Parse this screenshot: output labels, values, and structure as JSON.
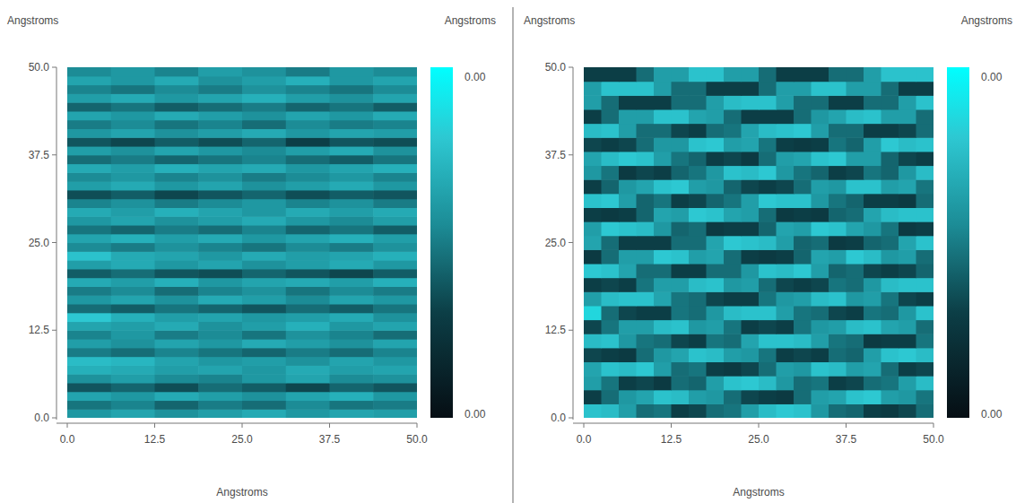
{
  "chart_data": [
    {
      "type": "heatmap",
      "x_label": "Angstroms",
      "y_label": "Angstroms",
      "colorbar_label": "Angstroms",
      "xlim": [
        0,
        50
      ],
      "ylim": [
        0,
        50
      ],
      "xticks": [
        {
          "value": 0,
          "label": "0.0"
        },
        12.5,
        {
          "value": 25,
          "label": "25.0"
        },
        37.5,
        {
          "value": 50,
          "label": "50.0"
        }
      ],
      "yticks": [
        {
          "value": 0,
          "label": "0.0"
        },
        12.5,
        {
          "value": 25,
          "label": "25.0"
        },
        37.5,
        {
          "value": 50,
          "label": "50.0"
        }
      ],
      "colorbar_range": [
        0,
        0.004
      ],
      "colorbar_ticks": [
        {
          "value": 0,
          "label": "0.00"
        },
        {
          "value": 0.004,
          "label": "0.00"
        }
      ],
      "z": [
        [
          0.0024,
          0.0026,
          0.0023,
          0.0025,
          0.0027,
          0.0024,
          0.0026,
          0.0025
        ],
        [
          0.0019,
          0.0021,
          0.0017,
          0.002,
          0.0018,
          0.0022,
          0.0019,
          0.002
        ],
        [
          0.0026,
          0.0024,
          0.0027,
          0.0025,
          0.0023,
          0.0026,
          0.0028,
          0.0024
        ],
        [
          0.0015,
          0.0017,
          0.0014,
          0.0018,
          0.0016,
          0.0013,
          0.0017,
          0.0015
        ],
        [
          0.0023,
          0.0025,
          0.0022,
          0.0021,
          0.0024,
          0.0026,
          0.0022,
          0.0023
        ],
        [
          0.0028,
          0.0027,
          0.0025,
          0.0026,
          0.0024,
          0.0027,
          0.0025,
          0.0026
        ],
        [
          0.003,
          0.0029,
          0.0026,
          0.0024,
          0.0025,
          0.0023,
          0.0026,
          0.0024
        ],
        [
          0.002,
          0.0018,
          0.0021,
          0.0019,
          0.0017,
          0.002,
          0.0018,
          0.0021
        ],
        [
          0.0025,
          0.0023,
          0.0026,
          0.0024,
          0.0027,
          0.0025,
          0.0023,
          0.0026
        ],
        [
          0.0021,
          0.0024,
          0.002,
          0.0022,
          0.0019,
          0.0023,
          0.0021,
          0.0018
        ],
        [
          0.0026,
          0.0025,
          0.0027,
          0.0023,
          0.0025,
          0.0028,
          0.0024,
          0.0026
        ],
        [
          0.0032,
          0.0028,
          0.0025,
          0.0026,
          0.0024,
          0.0025,
          0.0027,
          0.0023
        ],
        [
          0.0018,
          0.0016,
          0.0019,
          0.0017,
          0.0015,
          0.0018,
          0.0016,
          0.0019
        ],
        [
          0.0024,
          0.0026,
          0.0023,
          0.0027,
          0.0025,
          0.0022,
          0.0026,
          0.0024
        ],
        [
          0.002,
          0.0022,
          0.0018,
          0.0021,
          0.0023,
          0.0019,
          0.0022,
          0.002
        ],
        [
          0.0027,
          0.0025,
          0.0028,
          0.0024,
          0.0026,
          0.0027,
          0.0025,
          0.0028
        ],
        [
          0.0016,
          0.0018,
          0.0015,
          0.0014,
          0.0017,
          0.0015,
          0.0013,
          0.0016
        ],
        [
          0.0025,
          0.0027,
          0.0024,
          0.0026,
          0.0023,
          0.0025,
          0.0027,
          0.0024
        ],
        [
          0.0031,
          0.0027,
          0.0026,
          0.0024,
          0.0027,
          0.0025,
          0.0026,
          0.0028
        ],
        [
          0.0022,
          0.002,
          0.0023,
          0.0021,
          0.0019,
          0.0022,
          0.002,
          0.0023
        ],
        [
          0.0026,
          0.0028,
          0.0025,
          0.0027,
          0.0024,
          0.0026,
          0.0028,
          0.0025
        ],
        [
          0.0019,
          0.0017,
          0.002,
          0.0018,
          0.0021,
          0.0017,
          0.0019,
          0.0016
        ],
        [
          0.0024,
          0.0026,
          0.0023,
          0.0025,
          0.0027,
          0.0024,
          0.0022,
          0.0025
        ],
        [
          0.0027,
          0.0025,
          0.0028,
          0.0026,
          0.0024,
          0.0027,
          0.0025,
          0.0027
        ],
        [
          0.0021,
          0.0023,
          0.002,
          0.0022,
          0.0024,
          0.0021,
          0.0023,
          0.002
        ],
        [
          0.0014,
          0.0016,
          0.0013,
          0.0015,
          0.0017,
          0.0014,
          0.0016,
          0.0015
        ],
        [
          0.0025,
          0.0027,
          0.0024,
          0.0026,
          0.0023,
          0.0025,
          0.0027,
          0.0024
        ],
        [
          0.0022,
          0.0024,
          0.0021,
          0.0023,
          0.002,
          0.0022,
          0.0024,
          0.0021
        ],
        [
          0.0027,
          0.0025,
          0.0028,
          0.0026,
          0.0027,
          0.0024,
          0.0026,
          0.0028
        ],
        [
          0.0018,
          0.002,
          0.0017,
          0.0019,
          0.0021,
          0.0018,
          0.0016,
          0.0019
        ],
        [
          0.0025,
          0.0023,
          0.0026,
          0.0024,
          0.0022,
          0.0025,
          0.0027,
          0.0023
        ],
        [
          0.0015,
          0.0013,
          0.0016,
          0.0014,
          0.0017,
          0.0012,
          0.0015,
          0.0014
        ],
        [
          0.0024,
          0.0026,
          0.0023,
          0.0025,
          0.0027,
          0.0024,
          0.0026,
          0.0025
        ],
        [
          0.002,
          0.0022,
          0.0019,
          0.0021,
          0.0018,
          0.0022,
          0.002,
          0.0021
        ],
        [
          0.0026,
          0.0024,
          0.0027,
          0.0025,
          0.0023,
          0.0026,
          0.0024,
          0.0027
        ],
        [
          0.0017,
          0.0019,
          0.0016,
          0.0018,
          0.002,
          0.0017,
          0.0019,
          0.0016
        ],
        [
          0.0025,
          0.0027,
          0.0024,
          0.0026,
          0.0028,
          0.0025,
          0.0023,
          0.0026
        ],
        [
          0.0021,
          0.0019,
          0.0022,
          0.002,
          0.0023,
          0.0021,
          0.0019,
          0.0022
        ],
        [
          0.0026,
          0.0024,
          0.0027,
          0.0023,
          0.0025,
          0.0028,
          0.0024,
          0.0026
        ],
        [
          0.0022,
          0.0024,
          0.0021,
          0.0025,
          0.0023,
          0.002,
          0.0024,
          0.0022
        ]
      ]
    },
    {
      "type": "heatmap",
      "x_label": "Angstroms",
      "y_label": "Angstroms",
      "colorbar_label": "Angstroms",
      "xlim": [
        0,
        50
      ],
      "ylim": [
        0,
        50
      ],
      "xticks": [
        {
          "value": 0,
          "label": "0.0"
        },
        12.5,
        {
          "value": 25,
          "label": "25.0"
        },
        37.5,
        {
          "value": 50,
          "label": "50.0"
        }
      ],
      "yticks": [
        {
          "value": 0,
          "label": "0.0"
        },
        12.5,
        {
          "value": 25,
          "label": "25.0"
        },
        37.5,
        {
          "value": 50,
          "label": "50.0"
        }
      ],
      "colorbar_range": [
        0,
        0.004
      ],
      "colorbar_ticks": [
        {
          "value": 0,
          "label": "0.00"
        },
        {
          "value": 0.004,
          "label": "0.00"
        }
      ],
      "z": [
        [
          0.0031,
          0.003,
          0.0025,
          0.0018,
          0.0019,
          0.0012,
          0.0013,
          0.0018,
          0.0019,
          0.0025,
          0.003,
          0.0032,
          0.0031,
          0.0024,
          0.0018,
          0.0017,
          0.0012,
          0.0011,
          0.0013,
          0.0018
        ],
        [
          0.0012,
          0.0018,
          0.0024,
          0.0026,
          0.0031,
          0.003,
          0.0025,
          0.0024,
          0.0018,
          0.0013,
          0.0012,
          0.0011,
          0.0018,
          0.0025,
          0.0026,
          0.0031,
          0.0032,
          0.0025,
          0.0024,
          0.0019
        ],
        [
          0.0025,
          0.0019,
          0.0012,
          0.0013,
          0.0011,
          0.0018,
          0.0017,
          0.0025,
          0.0031,
          0.0032,
          0.003,
          0.0024,
          0.0018,
          0.0019,
          0.0012,
          0.0013,
          0.0018,
          0.0019,
          0.0025,
          0.003
        ],
        [
          0.0026,
          0.0031,
          0.003,
          0.0032,
          0.0025,
          0.0018,
          0.0019,
          0.0012,
          0.0011,
          0.0013,
          0.0018,
          0.0025,
          0.0024,
          0.0031,
          0.003,
          0.0025,
          0.0026,
          0.0018,
          0.0012,
          0.0013
        ],
        [
          0.0013,
          0.0012,
          0.0011,
          0.0018,
          0.0024,
          0.0026,
          0.0031,
          0.003,
          0.0025,
          0.0024,
          0.0019,
          0.0012,
          0.0013,
          0.0012,
          0.0018,
          0.0017,
          0.0025,
          0.0031,
          0.0032,
          0.003
        ],
        [
          0.003,
          0.0031,
          0.0024,
          0.0019,
          0.0018,
          0.0013,
          0.0012,
          0.0019,
          0.0018,
          0.0026,
          0.0031,
          0.0031,
          0.003,
          0.0025,
          0.0019,
          0.0018,
          0.0011,
          0.0012,
          0.0012,
          0.0019
        ],
        [
          0.0013,
          0.0019,
          0.0025,
          0.0025,
          0.003,
          0.0031,
          0.0024,
          0.0025,
          0.0019,
          0.0012,
          0.0013,
          0.0012,
          0.0019,
          0.0024,
          0.0025,
          0.003,
          0.0031,
          0.0026,
          0.0025,
          0.0018
        ],
        [
          0.0034,
          0.0018,
          0.0013,
          0.0012,
          0.0012,
          0.0019,
          0.0018,
          0.0024,
          0.003,
          0.0031,
          0.0031,
          0.0025,
          0.0019,
          0.0018,
          0.0013,
          0.0012,
          0.0019,
          0.0018,
          0.0024,
          0.0031
        ],
        [
          0.0025,
          0.003,
          0.0031,
          0.0031,
          0.0026,
          0.0019,
          0.0018,
          0.0013,
          0.0012,
          0.0012,
          0.0019,
          0.0024,
          0.0025,
          0.003,
          0.0031,
          0.0024,
          0.0025,
          0.0019,
          0.0013,
          0.0012
        ],
        [
          0.0012,
          0.0013,
          0.0012,
          0.0019,
          0.0025,
          0.0025,
          0.003,
          0.0031,
          0.0024,
          0.0025,
          0.0018,
          0.0013,
          0.0012,
          0.0013,
          0.0019,
          0.0018,
          0.0024,
          0.003,
          0.0031,
          0.0031
        ],
        [
          0.0032,
          0.0031,
          0.0026,
          0.0018,
          0.0018,
          0.0012,
          0.0012,
          0.0018,
          0.0018,
          0.0024,
          0.0031,
          0.003,
          0.0032,
          0.0025,
          0.0017,
          0.0018,
          0.0013,
          0.0012,
          0.0013,
          0.0017
        ],
        [
          0.0011,
          0.0018,
          0.0025,
          0.0025,
          0.0032,
          0.0031,
          0.0025,
          0.0026,
          0.0018,
          0.0012,
          0.0011,
          0.0012,
          0.0017,
          0.0026,
          0.0025,
          0.0032,
          0.003,
          0.0024,
          0.0025,
          0.0018
        ],
        [
          0.0026,
          0.0018,
          0.0012,
          0.0012,
          0.0012,
          0.0018,
          0.0018,
          0.0026,
          0.0032,
          0.0031,
          0.003,
          0.0025,
          0.0017,
          0.0018,
          0.0011,
          0.0012,
          0.0017,
          0.0018,
          0.0026,
          0.0031
        ],
        [
          0.0025,
          0.0032,
          0.0031,
          0.003,
          0.0024,
          0.0017,
          0.0018,
          0.0011,
          0.0012,
          0.0012,
          0.0017,
          0.0026,
          0.0025,
          0.0032,
          0.0031,
          0.0026,
          0.0024,
          0.0019,
          0.0011,
          0.0012
        ],
        [
          0.0012,
          0.0011,
          0.0012,
          0.0017,
          0.0026,
          0.0025,
          0.0032,
          0.0031,
          0.0026,
          0.0025,
          0.0018,
          0.0011,
          0.0012,
          0.0011,
          0.0017,
          0.0018,
          0.0026,
          0.003,
          0.0031,
          0.0031
        ],
        [
          0.0031,
          0.0032,
          0.0025,
          0.0017,
          0.0019,
          0.0012,
          0.0013,
          0.0017,
          0.0019,
          0.0025,
          0.0032,
          0.0031,
          0.0031,
          0.0024,
          0.0019,
          0.0017,
          0.0012,
          0.0012,
          0.0011,
          0.0018
        ],
        [
          0.0012,
          0.0017,
          0.0024,
          0.0026,
          0.0031,
          0.0032,
          0.0025,
          0.0024,
          0.0017,
          0.0013,
          0.0012,
          0.0013,
          0.0018,
          0.0025,
          0.0024,
          0.0031,
          0.0031,
          0.0025,
          0.0026,
          0.0019
        ],
        [
          0.0024,
          0.0019,
          0.0011,
          0.0013,
          0.0012,
          0.0017,
          0.0019,
          0.0024,
          0.0031,
          0.003,
          0.0032,
          0.0024,
          0.0019,
          0.0017,
          0.0012,
          0.0013,
          0.0019,
          0.0017,
          0.0024,
          0.003
        ],
        [
          0.0026,
          0.003,
          0.0032,
          0.0031,
          0.0025,
          0.0019,
          0.0017,
          0.0012,
          0.0013,
          0.0011,
          0.0018,
          0.0025,
          0.0026,
          0.0031,
          0.0032,
          0.0025,
          0.0025,
          0.0017,
          0.0013,
          0.0012
        ],
        [
          0.0013,
          0.0012,
          0.0013,
          0.0018,
          0.0024,
          0.0024,
          0.0031,
          0.0032,
          0.0025,
          0.0026,
          0.0019,
          0.0012,
          0.0011,
          0.0012,
          0.0019,
          0.0017,
          0.0025,
          0.0032,
          0.003,
          0.0031
        ],
        [
          0.003,
          0.0031,
          0.0025,
          0.0018,
          0.0018,
          0.0013,
          0.0012,
          0.0018,
          0.0019,
          0.0026,
          0.003,
          0.0031,
          0.0032,
          0.0025,
          0.0018,
          0.0018,
          0.0012,
          0.0012,
          0.0013,
          0.0018
        ],
        [
          0.0012,
          0.0018,
          0.0025,
          0.0025,
          0.0031,
          0.0031,
          0.0026,
          0.0025,
          0.0018,
          0.0012,
          0.0012,
          0.0012,
          0.0018,
          0.0024,
          0.0026,
          0.003,
          0.0031,
          0.0025,
          0.0025,
          0.0018
        ],
        [
          0.0025,
          0.0018,
          0.0012,
          0.0012,
          0.0012,
          0.0018,
          0.0018,
          0.0025,
          0.003,
          0.0031,
          0.0031,
          0.0025,
          0.0018,
          0.0018,
          0.0012,
          0.0012,
          0.0018,
          0.0018,
          0.0025,
          0.0031
        ],
        [
          0.0025,
          0.0031,
          0.0031,
          0.0031,
          0.0025,
          0.0018,
          0.0018,
          0.0012,
          0.0012,
          0.0012,
          0.0018,
          0.0025,
          0.0025,
          0.0031,
          0.0031,
          0.0025,
          0.0025,
          0.0018,
          0.0012,
          0.0012
        ],
        [
          0.0012,
          0.0012,
          0.0012,
          0.0018,
          0.0025,
          0.0025,
          0.0031,
          0.0031,
          0.0025,
          0.0025,
          0.0018,
          0.0012,
          0.0012,
          0.0012,
          0.0018,
          0.0018,
          0.0025,
          0.0031,
          0.0031,
          0.0031
        ]
      ]
    }
  ]
}
